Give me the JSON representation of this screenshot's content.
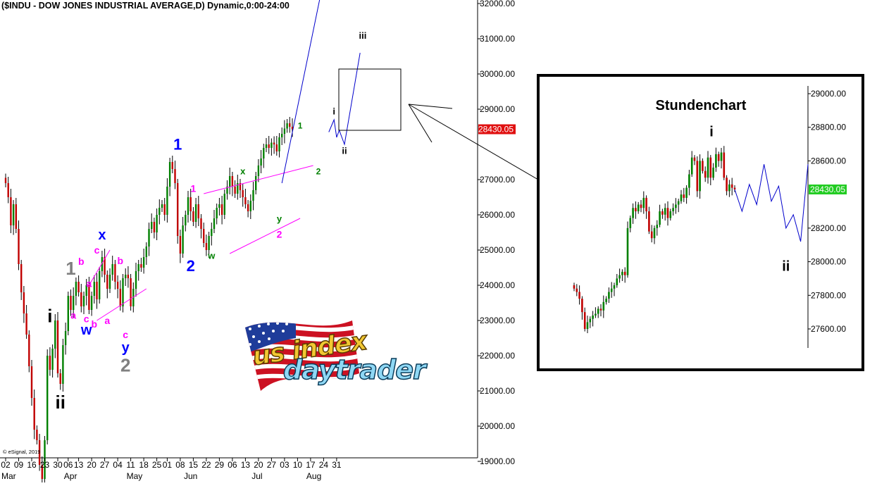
{
  "header": {
    "title": "($INDU - DOW JONES INDUSTRIAL AVERAGE,D) Dynamic,0:00-24:00"
  },
  "copyright": "© eSignal, 2019",
  "inset": {
    "title": "Stundenchart"
  },
  "logo": {
    "line1": "us index",
    "line2": "daytrader"
  },
  "colors": {
    "up": "#008000",
    "down": "#c00000",
    "projection": "#0000cc",
    "price_tag": "#e01010",
    "inset_tag": "#22cc22"
  },
  "chart_data": [
    {
      "type": "candlestick",
      "title": "($INDU - DOW JONES INDUSTRIAL AVERAGE,D) Dynamic,0:00-24:00",
      "ylim": [
        18200,
        32300
      ],
      "y_ticks": [
        {
          "value": 32000,
          "label": "32000.00"
        },
        {
          "value": 31000,
          "label": "31000.00"
        },
        {
          "value": 30000,
          "label": "30000.00"
        },
        {
          "value": 29000,
          "label": "29000.00"
        },
        {
          "value": 27000,
          "label": "27000.00"
        },
        {
          "value": 26000,
          "label": "26000.00"
        },
        {
          "value": 25000,
          "label": "25000.00"
        },
        {
          "value": 24000,
          "label": "24000.00"
        },
        {
          "value": 23000,
          "label": "23000.00"
        },
        {
          "value": 22000,
          "label": "22000.00"
        },
        {
          "value": 21000,
          "label": "21000.00"
        },
        {
          "value": 20000,
          "label": "20000.00"
        },
        {
          "value": 19000,
          "label": "19000.00"
        }
      ],
      "last_price": {
        "value": 28430.05,
        "label": "28430.05"
      },
      "x_ticks": [
        {
          "i": 0,
          "label": "02"
        },
        {
          "i": 5,
          "label": "09"
        },
        {
          "i": 10,
          "label": "16"
        },
        {
          "i": 15,
          "label": "23"
        },
        {
          "i": 20,
          "label": "30"
        },
        {
          "i": 24,
          "label": "06"
        },
        {
          "i": 28,
          "label": "13"
        },
        {
          "i": 33,
          "label": "20"
        },
        {
          "i": 38,
          "label": "27"
        },
        {
          "i": 43,
          "label": "04"
        },
        {
          "i": 48,
          "label": "11"
        },
        {
          "i": 53,
          "label": "18"
        },
        {
          "i": 58,
          "label": "25"
        },
        {
          "i": 62,
          "label": "01"
        },
        {
          "i": 67,
          "label": "08"
        },
        {
          "i": 72,
          "label": "15"
        },
        {
          "i": 77,
          "label": "22"
        },
        {
          "i": 82,
          "label": "29"
        },
        {
          "i": 87,
          "label": "06"
        },
        {
          "i": 92,
          "label": "13"
        },
        {
          "i": 97,
          "label": "20"
        },
        {
          "i": 102,
          "label": "27"
        },
        {
          "i": 107,
          "label": "03"
        },
        {
          "i": 112,
          "label": "10"
        },
        {
          "i": 117,
          "label": "17"
        },
        {
          "i": 122,
          "label": "24"
        },
        {
          "i": 127,
          "label": "31"
        }
      ],
      "months": [
        {
          "i": 0,
          "label": "Mar"
        },
        {
          "i": 24,
          "label": "Apr"
        },
        {
          "i": 48,
          "label": "May"
        },
        {
          "i": 70,
          "label": "Jun"
        },
        {
          "i": 96,
          "label": "Jul"
        },
        {
          "i": 117,
          "label": "Aug"
        }
      ],
      "closes": [
        26900,
        26500,
        25700,
        26300,
        25600,
        24600,
        23800,
        23200,
        22600,
        21700,
        20800,
        19900,
        19600,
        18900,
        18500,
        19600,
        22000,
        21600,
        22200,
        23000,
        21500,
        21200,
        22300,
        22700,
        23700,
        23300,
        23700,
        24100,
        23800,
        23400,
        23700,
        24000,
        23300,
        23700,
        24100,
        23600,
        24400,
        24800,
        24300,
        23900,
        24300,
        24600,
        24100,
        23900,
        23400,
        24200,
        24300,
        24200,
        23400,
        23900,
        24400,
        24600,
        24500,
        24800,
        25100,
        25600,
        25800,
        25500,
        26000,
        26200,
        26300,
        26000,
        26800,
        27500,
        27300,
        26900,
        25400,
        24900,
        25700,
        26000,
        26500,
        26100,
        25800,
        26300,
        25900,
        25600,
        25200,
        25000,
        25400,
        25600,
        25900,
        26200,
        26300,
        26000,
        26600,
        26800,
        27100,
        26800,
        26600,
        26900,
        26700,
        26500,
        26300,
        26100,
        26400,
        26700,
        27100,
        27400,
        27600,
        27900,
        28000,
        27900,
        28050,
        28000,
        27800,
        28200,
        28300,
        28450,
        28600,
        28500,
        28430
      ],
      "annotations": [
        {
          "label": "i",
          "i": 17,
          "v": 22950,
          "color": "#000000",
          "size": 26
        },
        {
          "label": "ii",
          "i": 21,
          "v": 20500,
          "color": "#000000",
          "size": 26
        },
        {
          "label": "1",
          "i": 25,
          "v": 24300,
          "color": "#808080",
          "size": 26
        },
        {
          "label": "a",
          "i": 26,
          "v": 23050,
          "color": "#ff00ff",
          "size": 14
        },
        {
          "label": "b",
          "i": 29,
          "v": 24580,
          "color": "#ff00ff",
          "size": 14
        },
        {
          "label": "c",
          "i": 31,
          "v": 22950,
          "color": "#ff00ff",
          "size": 14
        },
        {
          "label": "w",
          "i": 31,
          "v": 22600,
          "color": "#0000ff",
          "size": 20
        },
        {
          "label": "a",
          "i": 32,
          "v": 23950,
          "color": "#ff00ff",
          "size": 14
        },
        {
          "label": "b",
          "i": 34,
          "v": 22800,
          "color": "#ff00ff",
          "size": 14
        },
        {
          "label": "c",
          "i": 35,
          "v": 24900,
          "color": "#ff00ff",
          "size": 14
        },
        {
          "label": "x",
          "i": 37,
          "v": 25300,
          "color": "#0000ff",
          "size": 20
        },
        {
          "label": "a",
          "i": 39,
          "v": 22900,
          "color": "#ff00ff",
          "size": 14
        },
        {
          "label": "b",
          "i": 44,
          "v": 24600,
          "color": "#ff00ff",
          "size": 14
        },
        {
          "label": "c",
          "i": 46,
          "v": 22500,
          "color": "#ff00ff",
          "size": 14
        },
        {
          "label": "y",
          "i": 46,
          "v": 22100,
          "color": "#0000ff",
          "size": 20
        },
        {
          "label": "2",
          "i": 46,
          "v": 21550,
          "color": "#808080",
          "size": 26
        },
        {
          "label": "1",
          "i": 66,
          "v": 27850,
          "color": "#0000ff",
          "size": 22
        },
        {
          "label": "2",
          "i": 71,
          "v": 24400,
          "color": "#0000ff",
          "size": 22
        },
        {
          "label": "1",
          "i": 72,
          "v": 26650,
          "color": "#ff00ff",
          "size": 14
        },
        {
          "label": "w",
          "i": 79,
          "v": 24750,
          "color": "#008000",
          "size": 13
        },
        {
          "label": "x",
          "i": 91,
          "v": 27150,
          "color": "#008000",
          "size": 13
        },
        {
          "label": "y",
          "i": 105,
          "v": 25800,
          "color": "#008000",
          "size": 13
        },
        {
          "label": "2",
          "i": 105,
          "v": 25350,
          "color": "#ff00ff",
          "size": 14
        },
        {
          "label": "1",
          "i": 113,
          "v": 28450,
          "color": "#008000",
          "size": 12
        },
        {
          "label": "2",
          "i": 120,
          "v": 27150,
          "color": "#008000",
          "size": 12
        },
        {
          "label": "i",
          "i": 126,
          "v": 28850,
          "color": "#000000",
          "size": 13
        },
        {
          "label": "ii",
          "i": 130,
          "v": 27730,
          "color": "#000000",
          "size": 13
        },
        {
          "label": "iii",
          "i": 137,
          "v": 31000,
          "color": "#000000",
          "size": 13
        }
      ],
      "projection_main": [
        [
          106,
          26900
        ],
        [
          121,
          32300
        ]
      ],
      "projection_small": [
        [
          124,
          28350
        ],
        [
          126,
          28700
        ],
        [
          127,
          28200
        ],
        [
          128,
          28400
        ],
        [
          130,
          28000
        ],
        [
          136,
          30600
        ]
      ]
    },
    {
      "type": "candlestick",
      "title": "Stundenchart",
      "ylim": [
        27470,
        29050
      ],
      "y_ticks": [
        {
          "value": 29000,
          "label": "29000.00"
        },
        {
          "value": 28800,
          "label": "28800.00"
        },
        {
          "value": 28600,
          "label": "28600.00"
        },
        {
          "value": 28200,
          "label": "28200.00"
        },
        {
          "value": 28000,
          "label": "28000.00"
        },
        {
          "value": 27800,
          "label": "27800.00"
        },
        {
          "value": 27600,
          "label": "27600.00"
        }
      ],
      "last_price": {
        "value": 28430.05,
        "label": "28430.05"
      },
      "annotations": [
        {
          "label": "i",
          "v": 28780,
          "color": "#000000",
          "size": 20
        },
        {
          "label": "ii",
          "v": 27980,
          "color": "#000000",
          "size": 20
        }
      ],
      "closes": [
        27840,
        27820,
        27780,
        27700,
        27600,
        27640,
        27660,
        27680,
        27690,
        27720,
        27710,
        27760,
        27780,
        27820,
        27840,
        27860,
        27900,
        27920,
        27940,
        27920,
        28200,
        28260,
        28320,
        28300,
        28340,
        28320,
        28380,
        28300,
        28180,
        28140,
        28200,
        28220,
        28300,
        28280,
        28320,
        28260,
        28300,
        28320,
        28340,
        28360,
        28400,
        28380,
        28440,
        28520,
        28620,
        28600,
        28420,
        28600,
        28540,
        28500,
        28620,
        28500,
        28560,
        28640,
        28600,
        28650,
        28500,
        28420,
        28460,
        28440,
        28430
      ],
      "projection": [
        [
          28430
        ],
        [
          28300
        ],
        [
          28460
        ],
        [
          28340
        ],
        [
          28580
        ],
        [
          28360
        ],
        [
          28450
        ],
        [
          28200
        ],
        [
          28280
        ],
        [
          28120
        ],
        [
          28580
        ]
      ]
    }
  ]
}
